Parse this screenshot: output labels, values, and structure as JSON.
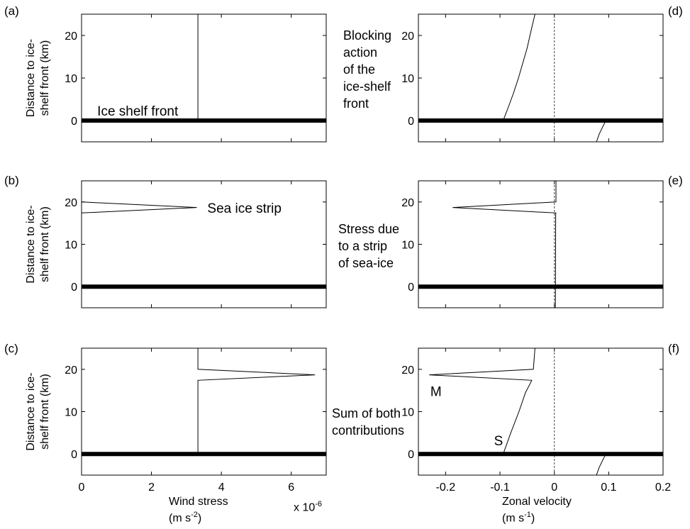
{
  "panel_labels": [
    "(a)",
    "(b)",
    "(c)",
    "(d)",
    "(e)",
    "(f)"
  ],
  "descriptions": [
    [
      "Blocking",
      "action",
      "of the",
      "ice-shelf",
      "front"
    ],
    [
      "Stress due",
      "to a strip",
      "of sea-ice"
    ],
    [
      "Sum of both",
      "contributions"
    ]
  ],
  "ylabel": [
    "Distance to ice-",
    "shelf front (km)"
  ],
  "left_xlabel": {
    "line1": "Wind stress",
    "line2_text": "(m s",
    "line2_exp": "-2",
    "line2_end": ")",
    "scale": "x 10",
    "scale_exp": "-6"
  },
  "right_xlabel": {
    "line1": "Zonal velocity",
    "line2_text": "(m s",
    "line2_exp": "-1",
    "line2_end": ")"
  },
  "chart_data": [
    {
      "id": "a",
      "type": "line",
      "title": "",
      "xlim": [
        0,
        7
      ],
      "ylim": [
        -5,
        25
      ],
      "xticks": [
        0,
        2,
        4,
        6
      ],
      "yticks": [
        0,
        10,
        20
      ],
      "annotations": [
        {
          "text": "Ice shelf front",
          "x": 0.45,
          "y": 1.2
        }
      ],
      "series": [
        {
          "x": [
            3.33,
            3.33
          ],
          "y": [
            0.5,
            25
          ]
        },
        {
          "role": "ice-shelf-front",
          "x": [
            0,
            7
          ],
          "y": [
            0,
            0
          ]
        }
      ]
    },
    {
      "id": "b",
      "type": "line",
      "title": "",
      "xlim": [
        0,
        7
      ],
      "ylim": [
        -5,
        25
      ],
      "xticks": [
        0,
        2,
        4,
        6
      ],
      "yticks": [
        0,
        10,
        20
      ],
      "annotations": [
        {
          "text": "Sea ice strip",
          "x": 3.6,
          "y": 17.5
        }
      ],
      "series": [
        {
          "x": [
            0,
            3.3,
            0
          ],
          "y": [
            20,
            18.7,
            17.4
          ]
        },
        {
          "role": "ice-shelf-front",
          "x": [
            0,
            7
          ],
          "y": [
            0,
            0
          ]
        }
      ]
    },
    {
      "id": "c",
      "type": "line",
      "title": "",
      "xlim": [
        0,
        7
      ],
      "ylim": [
        -5,
        25
      ],
      "xticks": [
        0,
        2,
        4,
        6
      ],
      "yticks": [
        0,
        10,
        20
      ],
      "annotations": [],
      "series": [
        {
          "x": [
            3.33,
            3.33,
            6.68,
            3.33,
            3.33
          ],
          "y": [
            25,
            20,
            18.7,
            17.4,
            0.5
          ]
        },
        {
          "role": "ice-shelf-front",
          "x": [
            0,
            7
          ],
          "y": [
            0,
            0
          ]
        }
      ]
    },
    {
      "id": "d",
      "type": "line",
      "title": "",
      "xlim": [
        -0.25,
        0.2
      ],
      "ylim": [
        -5,
        25
      ],
      "xticks": [
        -0.2,
        -0.1,
        0,
        0.1,
        0.2
      ],
      "yticks": [
        0,
        10,
        20
      ],
      "annotations": [],
      "series": [
        {
          "x": [
            -0.0935,
            -0.085,
            -0.075,
            -0.066,
            -0.058,
            -0.05,
            -0.043,
            -0.0356
          ],
          "y": [
            0.2,
            3,
            6.5,
            10,
            13.5,
            17,
            21,
            25
          ]
        },
        {
          "x": [
            0.0775,
            0.0825,
            0.09,
            0.095
          ],
          "y": [
            -5,
            -3.2,
            -1.2,
            0
          ]
        },
        {
          "role": "zero-line",
          "style": "dashed",
          "x": [
            0,
            0
          ],
          "y": [
            -5,
            25
          ]
        },
        {
          "role": "ice-shelf-front",
          "x": [
            -0.25,
            0.2
          ],
          "y": [
            0,
            0
          ]
        }
      ]
    },
    {
      "id": "e",
      "type": "line",
      "title": "",
      "xlim": [
        -0.25,
        0.2
      ],
      "ylim": [
        -5,
        25
      ],
      "xticks": [
        -0.2,
        -0.1,
        0,
        0.1,
        0.2
      ],
      "yticks": [
        0,
        10,
        20
      ],
      "annotations": [],
      "series": [
        {
          "x": [
            0.003,
            0.003,
            0.003,
            -0.187,
            0.003,
            0.0025,
            0.002
          ],
          "y": [
            25,
            20.2,
            20,
            18.7,
            17.4,
            17.3,
            -5
          ]
        },
        {
          "role": "zero-line",
          "style": "dashed",
          "x": [
            0,
            0
          ],
          "y": [
            -5,
            25
          ]
        },
        {
          "role": "ice-shelf-front",
          "x": [
            -0.25,
            0.2
          ],
          "y": [
            0,
            0
          ]
        }
      ]
    },
    {
      "id": "f",
      "type": "line",
      "title": "",
      "xlim": [
        -0.25,
        0.2
      ],
      "ylim": [
        -5,
        25
      ],
      "xticks": [
        -0.2,
        -0.1,
        0,
        0.1,
        0.2
      ],
      "yticks": [
        0,
        10,
        20
      ],
      "annotations": [
        {
          "text": "M",
          "x": -0.228,
          "y": 13.7
        },
        {
          "text": "S",
          "x": -0.111,
          "y": 2.0
        }
      ],
      "series": [
        {
          "x": [
            -0.0935,
            -0.08,
            -0.065,
            -0.053,
            -0.045,
            -0.0415,
            -0.23,
            -0.0385,
            -0.0356
          ],
          "y": [
            0.2,
            5,
            10,
            14.5,
            16.5,
            17.4,
            18.7,
            20,
            25
          ]
        },
        {
          "x": [
            0.0775,
            0.0825,
            0.09,
            0.095
          ],
          "y": [
            -5,
            -3.2,
            -1.2,
            0
          ]
        },
        {
          "role": "zero-line",
          "style": "dashed",
          "x": [
            0,
            0
          ],
          "y": [
            -5,
            25
          ]
        },
        {
          "role": "ice-shelf-front",
          "x": [
            -0.25,
            0.2
          ],
          "y": [
            0,
            0
          ]
        }
      ]
    }
  ]
}
